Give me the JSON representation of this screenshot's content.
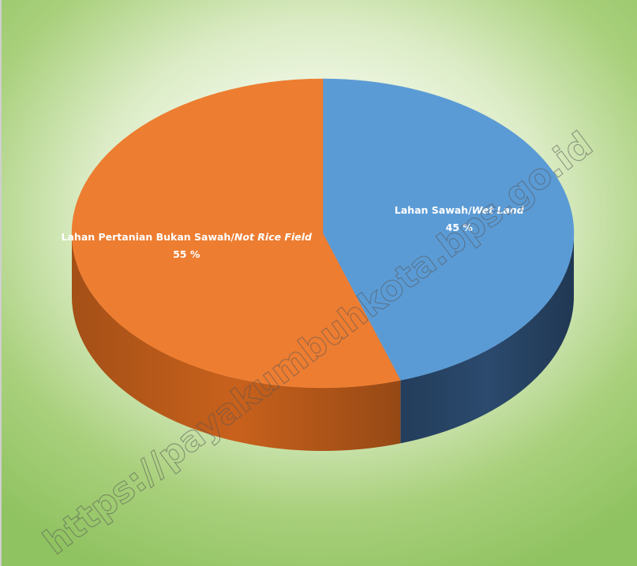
{
  "chart_data": {
    "type": "pie",
    "style": "3d",
    "title": "",
    "slices": [
      {
        "label": "Lahan Sawah",
        "label_italic": "Wet Land",
        "value": 45,
        "value_label": "45 %",
        "color": "#5b9bd5",
        "side_color": "#2b4a6e"
      },
      {
        "label": "Lahan Pertanian Bukan Sawah",
        "label_italic": "Not Rice Field",
        "value": 55,
        "value_label": "55 %",
        "color": "#ed7d31",
        "side_color": "#c8611c"
      }
    ],
    "legend": "none"
  },
  "watermark": "https://payakumbuhkota.bps.go.id",
  "colors": {
    "background_center": "#ffffff",
    "background_edge": "#8fc260"
  }
}
